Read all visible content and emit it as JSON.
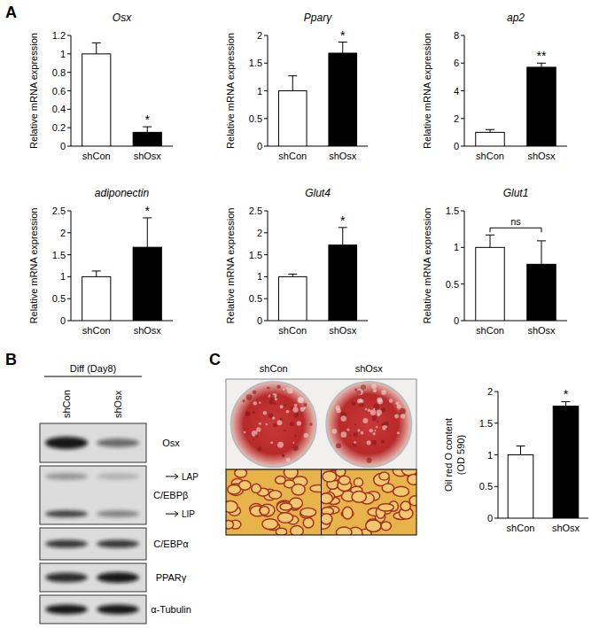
{
  "panels": [
    "A",
    "B",
    "C"
  ],
  "chart_data": [
    {
      "type": "bar",
      "title": "Osx",
      "ylabel": "Relative mRNA expression",
      "categories": [
        "shCon",
        "shOsx"
      ],
      "values": [
        1.0,
        0.15
      ],
      "errors": [
        0.12,
        0.06
      ],
      "colors": [
        "#ffffff",
        "#000000"
      ],
      "ylim": [
        0,
        1.2
      ],
      "yticks": [
        0,
        0.2,
        0.4,
        0.6,
        0.8,
        1,
        1.2
      ],
      "annotations": [
        {
          "text": "*",
          "over": [
            1
          ]
        }
      ]
    },
    {
      "type": "bar",
      "title": "Pparγ",
      "ylabel": "Relative mRNA expression",
      "categories": [
        "shCon",
        "shOsx"
      ],
      "values": [
        1.0,
        1.68
      ],
      "errors": [
        0.27,
        0.2
      ],
      "colors": [
        "#ffffff",
        "#000000"
      ],
      "ylim": [
        0,
        2
      ],
      "yticks": [
        0,
        0.5,
        1,
        1.5,
        2
      ],
      "annotations": [
        {
          "text": "*",
          "over": [
            1
          ]
        }
      ]
    },
    {
      "type": "bar",
      "title": "ap2",
      "ylabel": "Relative mRNA expression",
      "categories": [
        "shCon",
        "shOsx"
      ],
      "values": [
        1.0,
        5.7
      ],
      "errors": [
        0.2,
        0.3
      ],
      "colors": [
        "#ffffff",
        "#000000"
      ],
      "ylim": [
        0,
        8
      ],
      "yticks": [
        0,
        2,
        4,
        6,
        8
      ],
      "annotations": [
        {
          "text": "**",
          "over": [
            1
          ]
        }
      ]
    },
    {
      "type": "bar",
      "title": "adiponectin",
      "ylabel": "Relative mRNA expression",
      "categories": [
        "shCon",
        "shOsx"
      ],
      "values": [
        1.0,
        1.67
      ],
      "errors": [
        0.13,
        0.67
      ],
      "colors": [
        "#ffffff",
        "#000000"
      ],
      "ylim": [
        0,
        2.5
      ],
      "yticks": [
        0,
        0.5,
        1,
        1.5,
        2,
        2.5
      ],
      "annotations": [
        {
          "text": "*",
          "over": [
            1
          ]
        }
      ]
    },
    {
      "type": "bar",
      "title": "Glut4",
      "ylabel": "Relative mRNA expression",
      "categories": [
        "shCon",
        "shOsx"
      ],
      "values": [
        1.0,
        1.72
      ],
      "errors": [
        0.06,
        0.4
      ],
      "colors": [
        "#ffffff",
        "#000000"
      ],
      "ylim": [
        0,
        2.5
      ],
      "yticks": [
        0,
        0.5,
        1,
        1.5,
        2,
        2.5
      ],
      "annotations": [
        {
          "text": "*",
          "over": [
            1
          ]
        }
      ]
    },
    {
      "type": "bar",
      "title": "Glut1",
      "ylabel": "Relative mRNA expression",
      "categories": [
        "shCon",
        "shOsx"
      ],
      "values": [
        1.0,
        0.77
      ],
      "errors": [
        0.17,
        0.32
      ],
      "colors": [
        "#ffffff",
        "#000000"
      ],
      "ylim": [
        0,
        1.5
      ],
      "yticks": [
        0,
        0.5,
        1,
        1.5
      ],
      "annotations": [
        {
          "text": "ns",
          "over": [
            0,
            1
          ]
        }
      ]
    },
    {
      "type": "bar",
      "ylabel": [
        "Oil red O content",
        "(OD 590)"
      ],
      "categories": [
        "shCon",
        "shOsx"
      ],
      "values": [
        1.0,
        1.77
      ],
      "errors": [
        0.14,
        0.07
      ],
      "colors": [
        "#ffffff",
        "#000000"
      ],
      "ylim": [
        0,
        2
      ],
      "yticks": [
        0,
        0.5,
        1,
        1.5,
        2
      ],
      "annotations": [
        {
          "text": "*",
          "over": [
            1
          ]
        }
      ]
    }
  ],
  "blot": {
    "header": "Diff (Day8)",
    "lanes": [
      "shCon",
      "shOsx"
    ],
    "rows": [
      {
        "label": "Osx"
      },
      {
        "label": "C/EBPβ",
        "bands": [
          "LAP",
          "LIP"
        ]
      },
      {
        "label": "C/EBPα"
      },
      {
        "label": "PPARγ"
      },
      {
        "label": "α-Tubulin"
      }
    ]
  },
  "photos": {
    "lanes": [
      "shCon",
      "shOsx"
    ]
  }
}
